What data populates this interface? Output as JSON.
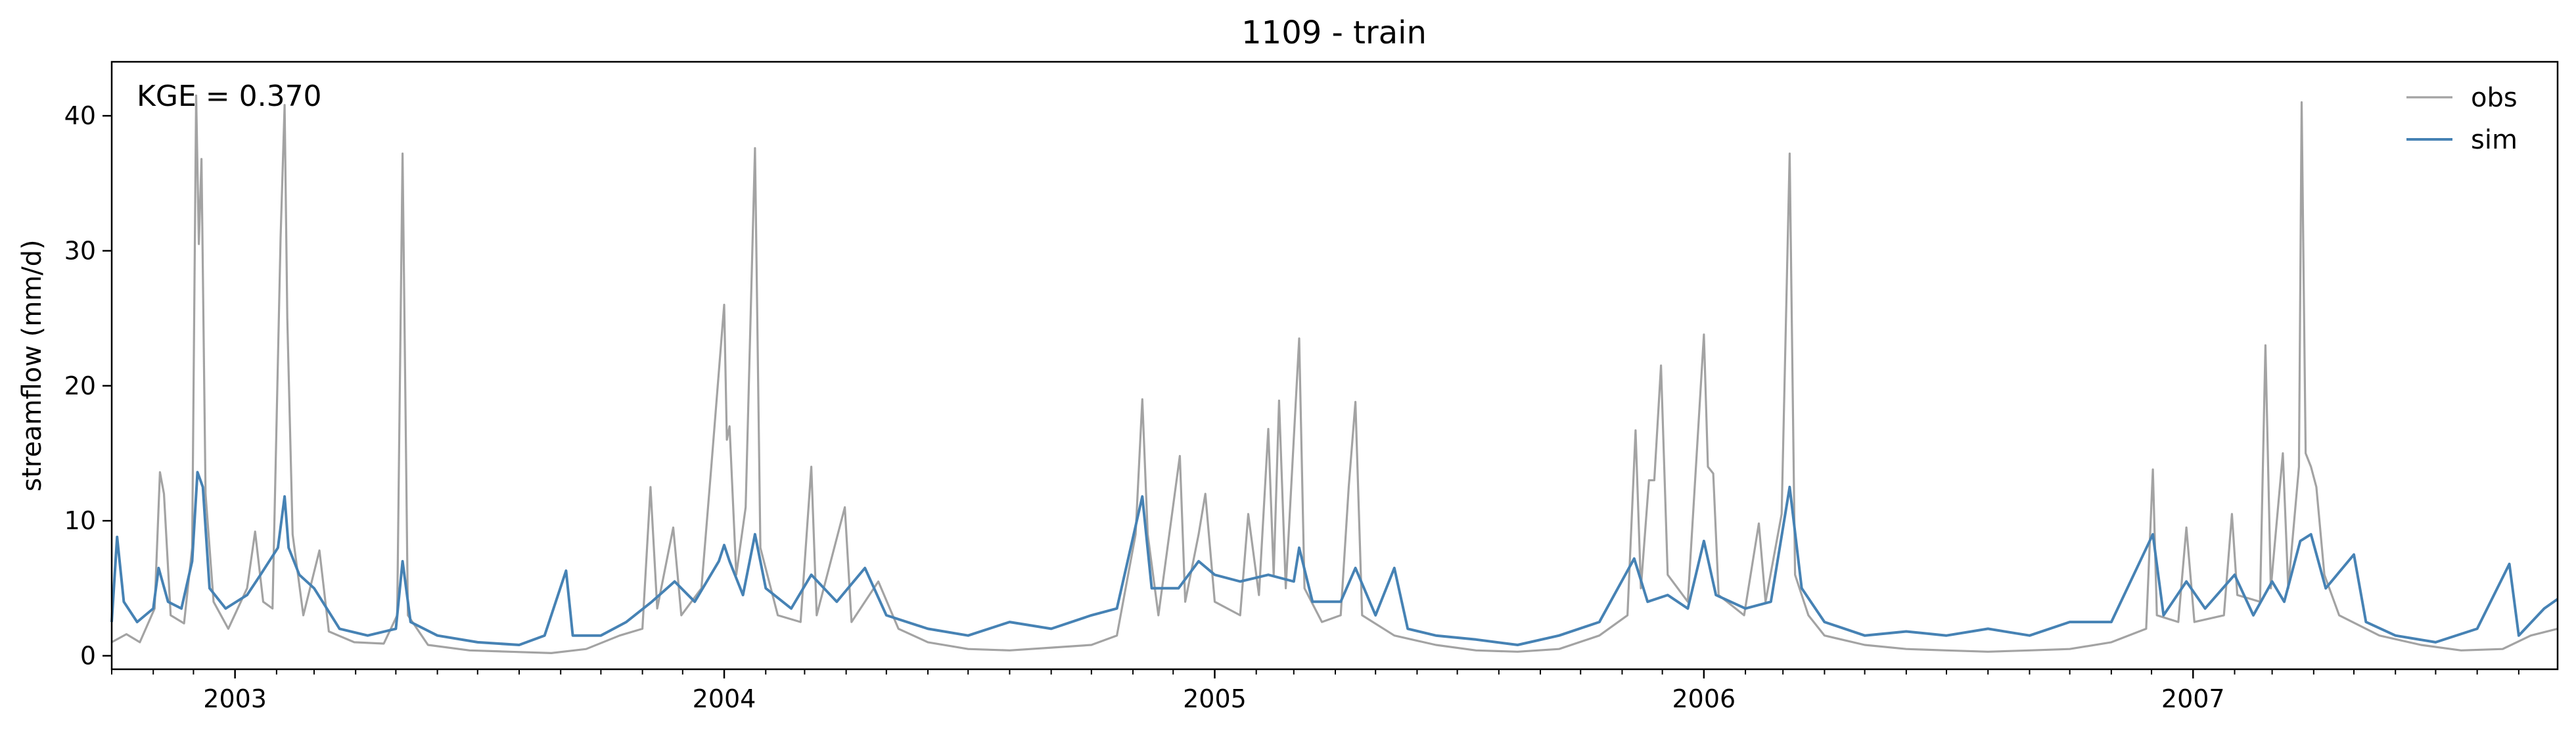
{
  "chart_data": {
    "type": "line",
    "title": "1109 - train",
    "xlabel": "",
    "ylabel": "streamflow (mm/d)",
    "x_range": [
      "2002-10-01",
      "2007-09-30"
    ],
    "ylim": [
      -1,
      44
    ],
    "yticks": [
      0,
      10,
      20,
      30,
      40
    ],
    "xticks": [
      {
        "date": "2003-01-01",
        "label": "2003"
      },
      {
        "date": "2004-01-01",
        "label": "2004"
      },
      {
        "date": "2005-01-01",
        "label": "2005"
      },
      {
        "date": "2006-01-01",
        "label": "2006"
      },
      {
        "date": "2007-01-01",
        "label": "2007"
      }
    ],
    "grid": false,
    "legend": {
      "placement": "top-right",
      "frame": false
    },
    "annotation": "KGE = 0.370",
    "series": [
      {
        "name": "obs",
        "color": "#a3a3a3",
        "points": [
          [
            "2002-10-01",
            1.0
          ],
          [
            "2002-10-12",
            1.6
          ],
          [
            "2002-10-22",
            1.0
          ],
          [
            "2002-11-02",
            3.5
          ],
          [
            "2002-11-06",
            13.6
          ],
          [
            "2002-11-09",
            12.0
          ],
          [
            "2002-11-14",
            3.0
          ],
          [
            "2002-11-24",
            2.4
          ],
          [
            "2002-11-30",
            8.0
          ],
          [
            "2002-12-03",
            41.5
          ],
          [
            "2002-12-05",
            30.5
          ],
          [
            "2002-12-07",
            36.8
          ],
          [
            "2002-12-10",
            12.0
          ],
          [
            "2002-12-16",
            4.0
          ],
          [
            "2002-12-27",
            2.0
          ],
          [
            "2003-01-10",
            5.0
          ],
          [
            "2003-01-16",
            9.2
          ],
          [
            "2003-01-22",
            4.0
          ],
          [
            "2003-01-29",
            3.5
          ],
          [
            "2003-02-04",
            31.0
          ],
          [
            "2003-02-07",
            40.8
          ],
          [
            "2003-02-09",
            25.0
          ],
          [
            "2003-02-13",
            9.0
          ],
          [
            "2003-02-21",
            3.0
          ],
          [
            "2003-03-05",
            7.8
          ],
          [
            "2003-03-12",
            1.8
          ],
          [
            "2003-03-31",
            1.0
          ],
          [
            "2003-04-22",
            0.9
          ],
          [
            "2003-05-02",
            3.0
          ],
          [
            "2003-05-06",
            37.2
          ],
          [
            "2003-05-10",
            3.0
          ],
          [
            "2003-05-25",
            0.8
          ],
          [
            "2003-06-25",
            0.4
          ],
          [
            "2003-07-25",
            0.3
          ],
          [
            "2003-08-25",
            0.2
          ],
          [
            "2003-09-20",
            0.5
          ],
          [
            "2003-10-15",
            1.5
          ],
          [
            "2003-11-01",
            2.0
          ],
          [
            "2003-11-07",
            12.5
          ],
          [
            "2003-11-12",
            3.5
          ],
          [
            "2003-11-24",
            9.5
          ],
          [
            "2003-11-30",
            3.0
          ],
          [
            "2003-12-15",
            5.0
          ],
          [
            "2003-12-22",
            13.5
          ],
          [
            "2004-01-01",
            26.0
          ],
          [
            "2004-01-03",
            16.0
          ],
          [
            "2004-01-05",
            17.0
          ],
          [
            "2004-01-10",
            6.0
          ],
          [
            "2004-01-17",
            11.0
          ],
          [
            "2004-01-24",
            37.6
          ],
          [
            "2004-01-28",
            8.0
          ],
          [
            "2004-02-10",
            3.0
          ],
          [
            "2004-02-27",
            2.5
          ],
          [
            "2004-03-06",
            14.0
          ],
          [
            "2004-03-10",
            3.0
          ],
          [
            "2004-03-31",
            11.0
          ],
          [
            "2004-04-05",
            2.5
          ],
          [
            "2004-04-25",
            5.5
          ],
          [
            "2004-05-10",
            2.0
          ],
          [
            "2004-06-01",
            1.0
          ],
          [
            "2004-07-01",
            0.5
          ],
          [
            "2004-08-01",
            0.4
          ],
          [
            "2004-09-01",
            0.6
          ],
          [
            "2004-10-01",
            0.8
          ],
          [
            "2004-10-20",
            1.5
          ],
          [
            "2004-11-03",
            9.0
          ],
          [
            "2004-11-08",
            19.0
          ],
          [
            "2004-11-12",
            9.0
          ],
          [
            "2004-11-20",
            3.0
          ],
          [
            "2004-12-06",
            14.8
          ],
          [
            "2004-12-10",
            4.0
          ],
          [
            "2004-12-20",
            9.0
          ],
          [
            "2004-12-25",
            12.0
          ],
          [
            "2005-01-01",
            4.0
          ],
          [
            "2005-01-20",
            3.0
          ],
          [
            "2005-01-26",
            10.5
          ],
          [
            "2005-02-03",
            4.5
          ],
          [
            "2005-02-10",
            16.8
          ],
          [
            "2005-02-14",
            6.0
          ],
          [
            "2005-02-18",
            18.9
          ],
          [
            "2005-02-23",
            5.0
          ],
          [
            "2005-03-05",
            23.5
          ],
          [
            "2005-03-09",
            5.0
          ],
          [
            "2005-03-22",
            2.5
          ],
          [
            "2005-04-05",
            3.0
          ],
          [
            "2005-04-11",
            12.5
          ],
          [
            "2005-04-16",
            18.8
          ],
          [
            "2005-04-21",
            3.0
          ],
          [
            "2005-05-15",
            1.5
          ],
          [
            "2005-06-15",
            0.8
          ],
          [
            "2005-07-15",
            0.4
          ],
          [
            "2005-08-15",
            0.3
          ],
          [
            "2005-09-15",
            0.5
          ],
          [
            "2005-10-15",
            1.5
          ],
          [
            "2005-11-05",
            3.0
          ],
          [
            "2005-11-11",
            16.7
          ],
          [
            "2005-11-15",
            5.0
          ],
          [
            "2005-11-21",
            13.0
          ],
          [
            "2005-11-25",
            13.0
          ],
          [
            "2005-11-30",
            21.5
          ],
          [
            "2005-12-05",
            6.0
          ],
          [
            "2005-12-20",
            4.0
          ],
          [
            "2006-01-01",
            23.8
          ],
          [
            "2006-01-04",
            14.0
          ],
          [
            "2006-01-08",
            13.5
          ],
          [
            "2006-01-12",
            4.5
          ],
          [
            "2006-01-31",
            3.0
          ],
          [
            "2006-02-11",
            9.8
          ],
          [
            "2006-02-16",
            4.0
          ],
          [
            "2006-02-28",
            10.5
          ],
          [
            "2006-03-06",
            37.2
          ],
          [
            "2006-03-10",
            6.0
          ],
          [
            "2006-03-20",
            3.0
          ],
          [
            "2006-04-01",
            1.5
          ],
          [
            "2006-05-01",
            0.8
          ],
          [
            "2006-06-01",
            0.5
          ],
          [
            "2006-07-01",
            0.4
          ],
          [
            "2006-08-01",
            0.3
          ],
          [
            "2006-09-01",
            0.4
          ],
          [
            "2006-10-01",
            0.5
          ],
          [
            "2006-11-01",
            1.0
          ],
          [
            "2006-11-27",
            2.0
          ],
          [
            "2006-12-02",
            13.8
          ],
          [
            "2006-12-05",
            3.0
          ],
          [
            "2006-12-21",
            2.5
          ],
          [
            "2006-12-27",
            9.5
          ],
          [
            "2007-01-02",
            2.5
          ],
          [
            "2007-01-24",
            3.0
          ],
          [
            "2007-01-30",
            10.5
          ],
          [
            "2007-02-03",
            4.5
          ],
          [
            "2007-02-20",
            4.0
          ],
          [
            "2007-02-24",
            23.0
          ],
          [
            "2007-02-28",
            5.0
          ],
          [
            "2007-03-09",
            15.0
          ],
          [
            "2007-03-13",
            5.0
          ],
          [
            "2007-03-21",
            14.0
          ],
          [
            "2007-03-23",
            41.0
          ],
          [
            "2007-03-26",
            15.0
          ],
          [
            "2007-03-30",
            14.0
          ],
          [
            "2007-04-03",
            12.5
          ],
          [
            "2007-04-09",
            6.0
          ],
          [
            "2007-04-20",
            3.0
          ],
          [
            "2007-05-20",
            1.5
          ],
          [
            "2007-06-20",
            0.8
          ],
          [
            "2007-07-20",
            0.4
          ],
          [
            "2007-08-20",
            0.5
          ],
          [
            "2007-09-10",
            1.5
          ],
          [
            "2007-09-30",
            2.0
          ]
        ]
      },
      {
        "name": "sim",
        "color": "#4682b4",
        "points": [
          [
            "2002-10-01",
            2.5
          ],
          [
            "2002-10-05",
            8.8
          ],
          [
            "2002-10-10",
            4.0
          ],
          [
            "2002-10-20",
            2.5
          ],
          [
            "2002-11-01",
            3.5
          ],
          [
            "2002-11-05",
            6.5
          ],
          [
            "2002-11-12",
            4.0
          ],
          [
            "2002-11-22",
            3.5
          ],
          [
            "2002-11-30",
            7.0
          ],
          [
            "2002-12-04",
            13.6
          ],
          [
            "2002-12-08",
            12.5
          ],
          [
            "2002-12-13",
            5.0
          ],
          [
            "2002-12-25",
            3.5
          ],
          [
            "2003-01-10",
            4.5
          ],
          [
            "2003-01-20",
            6.0
          ],
          [
            "2003-02-02",
            8.0
          ],
          [
            "2003-02-07",
            11.8
          ],
          [
            "2003-02-10",
            8.0
          ],
          [
            "2003-02-18",
            6.0
          ],
          [
            "2003-03-01",
            5.0
          ],
          [
            "2003-03-20",
            2.0
          ],
          [
            "2003-04-10",
            1.5
          ],
          [
            "2003-05-01",
            2.0
          ],
          [
            "2003-05-06",
            7.0
          ],
          [
            "2003-05-12",
            2.5
          ],
          [
            "2003-06-01",
            1.5
          ],
          [
            "2003-07-01",
            1.0
          ],
          [
            "2003-08-01",
            0.8
          ],
          [
            "2003-08-20",
            1.5
          ],
          [
            "2003-09-05",
            6.3
          ],
          [
            "2003-09-10",
            1.5
          ],
          [
            "2003-10-01",
            1.5
          ],
          [
            "2003-10-20",
            2.5
          ],
          [
            "2003-11-08",
            4.0
          ],
          [
            "2003-11-25",
            5.5
          ],
          [
            "2003-12-10",
            4.0
          ],
          [
            "2003-12-28",
            7.0
          ],
          [
            "2004-01-01",
            8.2
          ],
          [
            "2004-01-05",
            7.0
          ],
          [
            "2004-01-15",
            4.5
          ],
          [
            "2004-01-24",
            9.0
          ],
          [
            "2004-02-01",
            5.0
          ],
          [
            "2004-02-20",
            3.5
          ],
          [
            "2004-03-06",
            6.0
          ],
          [
            "2004-03-25",
            4.0
          ],
          [
            "2004-04-15",
            6.5
          ],
          [
            "2004-05-01",
            3.0
          ],
          [
            "2004-06-01",
            2.0
          ],
          [
            "2004-07-01",
            1.5
          ],
          [
            "2004-08-01",
            2.5
          ],
          [
            "2004-09-01",
            2.0
          ],
          [
            "2004-10-01",
            3.0
          ],
          [
            "2004-10-20",
            3.5
          ],
          [
            "2004-11-08",
            11.8
          ],
          [
            "2004-11-15",
            5.0
          ],
          [
            "2004-12-05",
            5.0
          ],
          [
            "2004-12-20",
            7.0
          ],
          [
            "2005-01-01",
            6.0
          ],
          [
            "2005-01-20",
            5.5
          ],
          [
            "2005-02-10",
            6.0
          ],
          [
            "2005-03-01",
            5.5
          ],
          [
            "2005-03-05",
            8.0
          ],
          [
            "2005-03-15",
            4.0
          ],
          [
            "2005-04-05",
            4.0
          ],
          [
            "2005-04-16",
            6.5
          ],
          [
            "2005-05-01",
            3.0
          ],
          [
            "2005-05-15",
            6.5
          ],
          [
            "2005-05-25",
            2.0
          ],
          [
            "2005-06-15",
            1.5
          ],
          [
            "2005-07-15",
            1.2
          ],
          [
            "2005-08-15",
            0.8
          ],
          [
            "2005-09-15",
            1.5
          ],
          [
            "2005-10-15",
            2.5
          ],
          [
            "2005-11-10",
            7.2
          ],
          [
            "2005-11-20",
            4.0
          ],
          [
            "2005-12-05",
            4.5
          ],
          [
            "2005-12-20",
            3.5
          ],
          [
            "2006-01-01",
            8.5
          ],
          [
            "2006-01-10",
            4.5
          ],
          [
            "2006-02-01",
            3.5
          ],
          [
            "2006-02-20",
            4.0
          ],
          [
            "2006-03-06",
            12.5
          ],
          [
            "2006-03-15",
            5.0
          ],
          [
            "2006-04-01",
            2.5
          ],
          [
            "2006-05-01",
            1.5
          ],
          [
            "2006-06-01",
            1.8
          ],
          [
            "2006-07-01",
            1.5
          ],
          [
            "2006-08-01",
            2.0
          ],
          [
            "2006-09-01",
            1.5
          ],
          [
            "2006-10-01",
            2.5
          ],
          [
            "2006-11-01",
            2.5
          ],
          [
            "2006-12-02",
            9.0
          ],
          [
            "2006-12-10",
            3.0
          ],
          [
            "2006-12-27",
            5.5
          ],
          [
            "2007-01-10",
            3.5
          ],
          [
            "2007-02-01",
            6.0
          ],
          [
            "2007-02-15",
            3.0
          ],
          [
            "2007-03-01",
            5.5
          ],
          [
            "2007-03-10",
            4.0
          ],
          [
            "2007-03-22",
            8.5
          ],
          [
            "2007-03-30",
            9.0
          ],
          [
            "2007-04-10",
            5.0
          ],
          [
            "2007-05-01",
            7.5
          ],
          [
            "2007-05-10",
            2.5
          ],
          [
            "2007-06-01",
            1.5
          ],
          [
            "2007-07-01",
            1.0
          ],
          [
            "2007-08-01",
            2.0
          ],
          [
            "2007-08-25",
            6.8
          ],
          [
            "2007-09-01",
            1.5
          ],
          [
            "2007-09-20",
            3.5
          ],
          [
            "2007-09-30",
            4.2
          ]
        ]
      }
    ]
  }
}
